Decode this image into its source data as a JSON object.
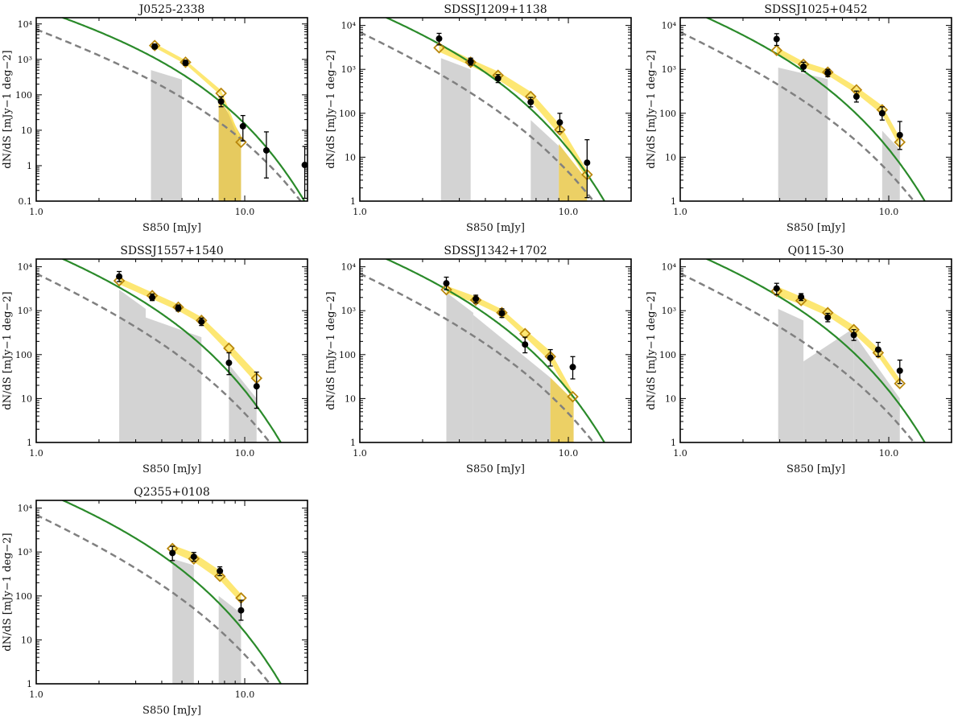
{
  "figure": {
    "xlabel": "S850 [mJy]",
    "ylabel": "dN/dS [mJy−1 deg−2]",
    "xticks": [
      {
        "v": 1,
        "label": "1.0"
      },
      {
        "v": 10,
        "label": "10.0"
      }
    ],
    "yticks_default": [
      {
        "v": 1,
        "label": "1"
      },
      {
        "v": 10,
        "label": "10"
      },
      {
        "v": 100,
        "label": "100"
      },
      {
        "v": 1000,
        "label": "10³"
      },
      {
        "v": 10000,
        "label": "10⁴"
      }
    ],
    "yticks_first": [
      {
        "v": 0.1,
        "label": "0.1"
      },
      {
        "v": 1,
        "label": "1"
      },
      {
        "v": 10,
        "label": "10"
      },
      {
        "v": 100,
        "label": "100"
      },
      {
        "v": 1000,
        "label": "10³"
      },
      {
        "v": 10000,
        "label": "10⁴"
      }
    ],
    "colors": {
      "green": "#2a8a2a",
      "gray_dash": "#808080",
      "gray_fill": "#d3d3d3",
      "yellow": "#fde35a",
      "yellow_band": "#e9c84a",
      "diamond": "#b8860b",
      "points": "#000000"
    }
  },
  "chart_data": [
    {
      "type": "scatter",
      "title": "J0525-2338",
      "xlim": [
        1,
        20
      ],
      "ylim": [
        0.1,
        15000
      ],
      "points": [
        [
          3.7,
          2300,
          2000,
          2700
        ],
        [
          5.2,
          800,
          680,
          940
        ],
        [
          7.7,
          65,
          46,
          88
        ],
        [
          9.8,
          13,
          5,
          26
        ],
        [
          12.7,
          2.7,
          0.45,
          9
        ],
        [
          19.4,
          1.05,
          0.12,
          3.5
        ]
      ],
      "diamonds": [
        [
          3.7,
          2450
        ],
        [
          5.2,
          830
        ],
        [
          7.7,
          110
        ],
        [
          9.6,
          4.6
        ]
      ],
      "band": [
        [
          3.7,
          2150,
          2800
        ],
        [
          5.2,
          730,
          950
        ],
        [
          7.7,
          95,
          135
        ],
        [
          9.6,
          3.8,
          5.6
        ]
      ],
      "gray_fill": [
        [
          [
            3.55,
            0.1
          ],
          [
            3.55,
            500
          ],
          [
            5.0,
            270
          ],
          [
            5.0,
            0.1
          ]
        ],
        [
          [
            7.5,
            0.1
          ],
          [
            7.5,
            90
          ],
          [
            9.6,
            7
          ],
          [
            9.6,
            0.1
          ]
        ]
      ],
      "yellow_fill": [
        [
          [
            7.5,
            0.1
          ],
          [
            7.5,
            90
          ],
          [
            9.6,
            7
          ],
          [
            9.6,
            0.1
          ]
        ]
      ]
    },
    {
      "type": "scatter",
      "title": "SDSSJ1209+1138",
      "xlim": [
        1,
        20
      ],
      "ylim": [
        1,
        15000
      ],
      "points": [
        [
          2.4,
          5000,
          3600,
          6600
        ],
        [
          3.4,
          1500,
          1250,
          1800
        ],
        [
          4.6,
          620,
          500,
          760
        ],
        [
          6.6,
          180,
          140,
          230
        ],
        [
          9.1,
          62,
          38,
          100
        ],
        [
          12.3,
          7.5,
          1.2,
          25
        ]
      ],
      "diamonds": [
        [
          2.4,
          3100
        ],
        [
          3.4,
          1450
        ],
        [
          4.6,
          730
        ],
        [
          6.6,
          240
        ],
        [
          9.1,
          42
        ],
        [
          12.3,
          4
        ]
      ],
      "band": [
        [
          2.4,
          2500,
          3800
        ],
        [
          3.4,
          1200,
          1700
        ],
        [
          4.6,
          580,
          900
        ],
        [
          6.6,
          190,
          310
        ],
        [
          9.1,
          32,
          55
        ],
        [
          12.3,
          3,
          5
        ]
      ],
      "gray_fill": [
        [
          [
            2.45,
            1
          ],
          [
            2.45,
            1800
          ],
          [
            3.4,
            1000
          ],
          [
            3.4,
            1
          ]
        ],
        [
          [
            6.6,
            1
          ],
          [
            6.6,
            70
          ],
          [
            9.0,
            18
          ],
          [
            9.0,
            1
          ]
        ]
      ],
      "yellow_fill": [
        [
          [
            9.0,
            1
          ],
          [
            9.0,
            20
          ],
          [
            12.3,
            3
          ],
          [
            12.3,
            1
          ]
        ]
      ]
    },
    {
      "type": "scatter",
      "title": "SDSSJ1025+0452",
      "xlim": [
        1,
        20
      ],
      "ylim": [
        1,
        15000
      ],
      "points": [
        [
          2.9,
          4900,
          3500,
          6500
        ],
        [
          3.9,
          1150,
          900,
          1450
        ],
        [
          5.1,
          830,
          680,
          1000
        ],
        [
          7.0,
          240,
          180,
          320
        ],
        [
          9.3,
          100,
          70,
          140
        ],
        [
          11.3,
          32,
          15,
          65
        ]
      ],
      "diamonds": [
        [
          2.9,
          2700
        ],
        [
          3.9,
          1300
        ],
        [
          5.1,
          860
        ],
        [
          7.0,
          340
        ],
        [
          9.3,
          120
        ],
        [
          11.3,
          22
        ]
      ],
      "band": [
        [
          2.9,
          2300,
          3200
        ],
        [
          3.9,
          1100,
          1500
        ],
        [
          5.1,
          730,
          1000
        ],
        [
          7.0,
          280,
          400
        ],
        [
          9.3,
          95,
          150
        ],
        [
          11.3,
          17,
          28
        ]
      ],
      "gray_fill": [
        [
          [
            2.95,
            1
          ],
          [
            2.95,
            1100
          ],
          [
            5.1,
            600
          ],
          [
            5.1,
            1
          ]
        ],
        [
          [
            9.3,
            1
          ],
          [
            9.3,
            40
          ],
          [
            11.3,
            15
          ],
          [
            11.3,
            1
          ]
        ]
      ],
      "yellow_fill": []
    },
    {
      "type": "scatter",
      "title": "SDSSJ1557+1540",
      "xlim": [
        1,
        20
      ],
      "ylim": [
        1,
        15000
      ],
      "points": [
        [
          2.5,
          6000,
          4600,
          7800
        ],
        [
          3.6,
          2000,
          1700,
          2400
        ],
        [
          4.8,
          1150,
          980,
          1350
        ],
        [
          6.2,
          560,
          460,
          680
        ],
        [
          8.4,
          65,
          35,
          110
        ],
        [
          11.4,
          19,
          6,
          40
        ]
      ],
      "diamonds": [
        [
          2.5,
          4800
        ],
        [
          3.6,
          2200
        ],
        [
          4.8,
          1200
        ],
        [
          6.2,
          600
        ],
        [
          8.4,
          140
        ],
        [
          11.4,
          29
        ]
      ],
      "band": [
        [
          2.5,
          4000,
          5700
        ],
        [
          3.6,
          1850,
          2600
        ],
        [
          4.8,
          1000,
          1400
        ],
        [
          6.2,
          500,
          720
        ],
        [
          8.4,
          110,
          180
        ],
        [
          11.4,
          22,
          38
        ]
      ],
      "gray_fill": [
        [
          [
            2.5,
            1
          ],
          [
            2.5,
            3000
          ],
          [
            3.35,
            1100
          ],
          [
            3.35,
            1
          ]
        ],
        [
          [
            3.35,
            1
          ],
          [
            3.35,
            700
          ],
          [
            6.2,
            250
          ],
          [
            6.2,
            1
          ]
        ],
        [
          [
            8.4,
            1
          ],
          [
            8.4,
            60
          ],
          [
            11.4,
            10
          ],
          [
            11.4,
            1
          ]
        ]
      ],
      "yellow_fill": []
    },
    {
      "type": "scatter",
      "title": "SDSSJ1342+1702",
      "xlim": [
        1,
        20
      ],
      "ylim": [
        1,
        15000
      ],
      "points": [
        [
          2.6,
          4200,
          3000,
          5800
        ],
        [
          3.6,
          1850,
          1500,
          2250
        ],
        [
          4.8,
          880,
          700,
          1100
        ],
        [
          6.2,
          170,
          110,
          250
        ],
        [
          8.2,
          85,
          55,
          130
        ],
        [
          10.5,
          52,
          28,
          90
        ]
      ],
      "diamonds": [
        [
          2.6,
          3000
        ],
        [
          3.6,
          1750
        ],
        [
          4.8,
          900
        ],
        [
          6.2,
          300
        ],
        [
          8.2,
          90
        ],
        [
          10.5,
          11
        ]
      ],
      "band": [
        [
          2.6,
          2500,
          3700
        ],
        [
          3.6,
          1500,
          2100
        ],
        [
          4.8,
          780,
          1080
        ],
        [
          6.2,
          250,
          370
        ],
        [
          8.2,
          70,
          120
        ],
        [
          10.5,
          9,
          14
        ]
      ],
      "gray_fill": [
        [
          [
            2.6,
            1
          ],
          [
            2.6,
            2600
          ],
          [
            3.5,
            900
          ],
          [
            3.5,
            1
          ]
        ],
        [
          [
            3.5,
            1
          ],
          [
            3.5,
            800
          ],
          [
            8.2,
            30
          ],
          [
            8.2,
            1
          ]
        ]
      ],
      "yellow_fill": [
        [
          [
            8.2,
            1
          ],
          [
            8.2,
            30
          ],
          [
            10.6,
            9
          ],
          [
            10.6,
            1
          ]
        ]
      ]
    },
    {
      "type": "scatter",
      "title": "Q0115-30",
      "xlim": [
        1,
        20
      ],
      "ylim": [
        1,
        15000
      ],
      "points": [
        [
          2.9,
          3200,
          2300,
          4200
        ],
        [
          3.8,
          2050,
          1700,
          2450
        ],
        [
          5.1,
          700,
          560,
          870
        ],
        [
          6.8,
          280,
          210,
          370
        ],
        [
          8.9,
          130,
          90,
          190
        ],
        [
          11.3,
          43,
          22,
          75
        ]
      ],
      "diamonds": [
        [
          2.9,
          2800
        ],
        [
          3.8,
          1700
        ],
        [
          5.1,
          900
        ],
        [
          6.8,
          370
        ],
        [
          8.9,
          110
        ],
        [
          11.3,
          22
        ]
      ],
      "band": [
        [
          2.9,
          2200,
          3600
        ],
        [
          3.8,
          1400,
          2100
        ],
        [
          5.1,
          750,
          1100
        ],
        [
          6.8,
          300,
          460
        ],
        [
          8.9,
          90,
          140
        ],
        [
          11.3,
          18,
          28
        ]
      ],
      "gray_fill": [
        [
          [
            2.95,
            1
          ],
          [
            2.95,
            1100
          ],
          [
            3.9,
            600
          ],
          [
            3.9,
            1
          ]
        ],
        [
          [
            3.9,
            1
          ],
          [
            3.9,
            70
          ],
          [
            6.8,
            400
          ],
          [
            6.8,
            1
          ]
        ],
        [
          [
            6.8,
            1
          ],
          [
            6.8,
            300
          ],
          [
            11.3,
            10
          ],
          [
            11.3,
            1
          ]
        ]
      ],
      "yellow_fill": []
    },
    {
      "type": "scatter",
      "title": "Q2355+0108",
      "xlim": [
        1,
        20
      ],
      "ylim": [
        1,
        15000
      ],
      "points": [
        [
          4.5,
          950,
          640,
          1350
        ],
        [
          5.7,
          780,
          620,
          980
        ],
        [
          7.6,
          370,
          290,
          460
        ],
        [
          9.6,
          47,
          28,
          80
        ]
      ],
      "diamonds": [
        [
          4.5,
          1200
        ],
        [
          5.7,
          700
        ],
        [
          7.6,
          280
        ],
        [
          9.6,
          90
        ]
      ],
      "band": [
        [
          4.5,
          1000,
          1450
        ],
        [
          5.7,
          600,
          950
        ],
        [
          7.6,
          230,
          380
        ],
        [
          9.6,
          70,
          110
        ]
      ],
      "gray_fill": [
        [
          [
            4.5,
            1
          ],
          [
            4.5,
            700
          ],
          [
            5.7,
            500
          ],
          [
            5.7,
            1
          ]
        ],
        [
          [
            7.5,
            1
          ],
          [
            7.5,
            100
          ],
          [
            9.6,
            40
          ],
          [
            9.6,
            1
          ]
        ]
      ],
      "yellow_fill": []
    }
  ]
}
